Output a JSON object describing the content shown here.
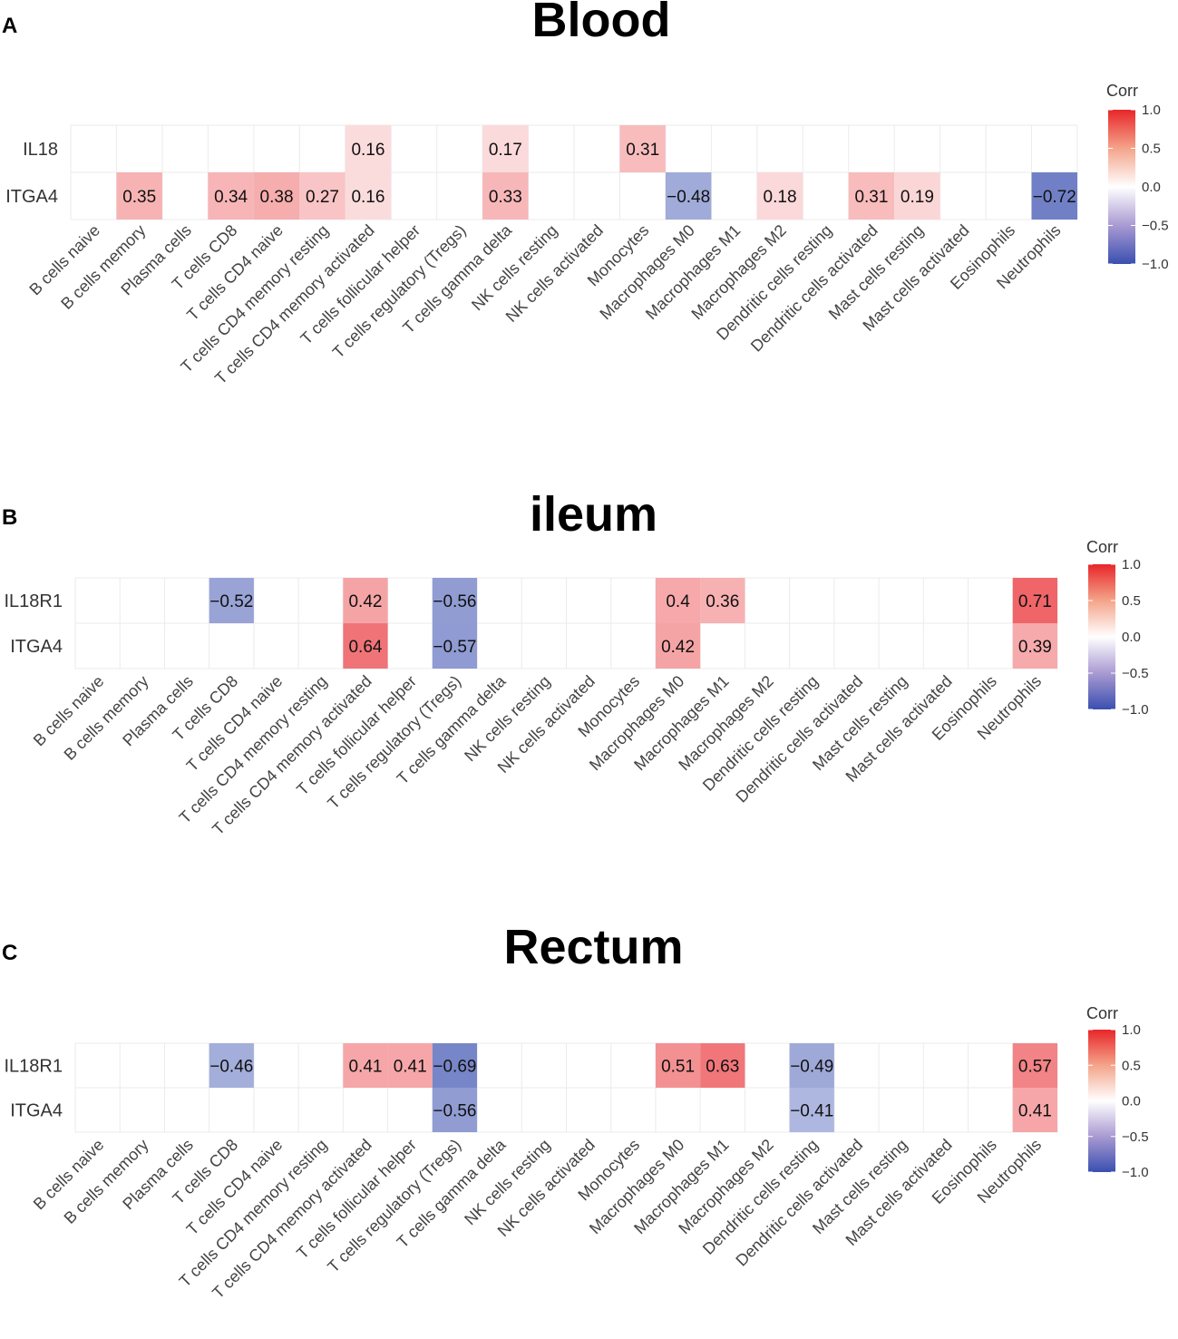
{
  "chart_data": [
    {
      "type": "heatmap",
      "panel_label": "A",
      "title": "Blood",
      "rows": [
        "IL18",
        "ITGA4"
      ],
      "columns": [
        "B cells naive",
        "B cells memory",
        "Plasma cells",
        "T cells CD8",
        "T cells CD4 naive",
        "T cells CD4 memory resting",
        "T cells CD4 memory activated",
        "T cells follicular helper",
        "T cells regulatory (Tregs)",
        "T cells gamma delta",
        "NK cells resting",
        "NK cells activated",
        "Monocytes",
        "Macrophages M0",
        "Macrophages M1",
        "Macrophages M2",
        "Dendritic cells resting",
        "Dendritic cells activated",
        "Mast cells resting",
        "Mast cells activated",
        "Eosinophils",
        "Neutrophils"
      ],
      "values": [
        [
          null,
          null,
          null,
          null,
          null,
          null,
          0.16,
          null,
          null,
          0.17,
          null,
          null,
          0.31,
          null,
          null,
          null,
          null,
          null,
          null,
          null,
          null,
          null
        ],
        [
          null,
          0.35,
          null,
          0.34,
          0.38,
          0.27,
          0.16,
          null,
          null,
          0.33,
          null,
          null,
          null,
          -0.48,
          null,
          0.18,
          null,
          0.31,
          0.19,
          null,
          null,
          -0.72
        ]
      ],
      "labels": [
        [
          null,
          null,
          null,
          null,
          null,
          null,
          "0.16",
          null,
          null,
          "0.17",
          null,
          null,
          "0.31",
          null,
          null,
          null,
          null,
          null,
          null,
          null,
          null,
          null
        ],
        [
          null,
          "0.35",
          null,
          "0.34",
          "0.38",
          "0.27",
          "0.16",
          null,
          null,
          "0.33",
          null,
          null,
          null,
          "−0.48",
          null,
          "0.18",
          null,
          "0.31",
          "0.19",
          null,
          null,
          "−0.72"
        ]
      ],
      "legend": {
        "title": "Corr",
        "ticks": [
          "1.0",
          "0.5",
          "0.0",
          "−0.5",
          "−1.0"
        ],
        "range": [
          -1,
          1
        ]
      }
    },
    {
      "type": "heatmap",
      "panel_label": "B",
      "title": "ileum",
      "rows": [
        "IL18R1",
        "ITGA4"
      ],
      "columns": [
        "B cells naive",
        "B cells memory",
        "Plasma cells",
        "T cells CD8",
        "T cells CD4 naive",
        "T cells CD4 memory resting",
        "T cells CD4 memory activated",
        "T cells follicular helper",
        "T cells regulatory (Tregs)",
        "T cells gamma delta",
        "NK cells resting",
        "NK cells activated",
        "Monocytes",
        "Macrophages M0",
        "Macrophages M1",
        "Macrophages M2",
        "Dendritic cells resting",
        "Dendritic cells activated",
        "Mast cells resting",
        "Mast cells activated",
        "Eosinophils",
        "Neutrophils"
      ],
      "values": [
        [
          null,
          null,
          null,
          -0.52,
          null,
          null,
          0.42,
          null,
          -0.56,
          null,
          null,
          null,
          null,
          0.4,
          0.36,
          null,
          null,
          null,
          null,
          null,
          null,
          0.71
        ],
        [
          null,
          null,
          null,
          null,
          null,
          null,
          0.64,
          null,
          -0.57,
          null,
          null,
          null,
          null,
          0.42,
          null,
          null,
          null,
          null,
          null,
          null,
          null,
          0.39
        ]
      ],
      "labels": [
        [
          null,
          null,
          null,
          "−0.52",
          null,
          null,
          "0.42",
          null,
          "−0.56",
          null,
          null,
          null,
          null,
          "0.4",
          "0.36",
          null,
          null,
          null,
          null,
          null,
          null,
          "0.71"
        ],
        [
          null,
          null,
          null,
          null,
          null,
          null,
          "0.64",
          null,
          "−0.57",
          null,
          null,
          null,
          null,
          "0.42",
          null,
          null,
          null,
          null,
          null,
          null,
          null,
          "0.39"
        ]
      ],
      "legend": {
        "title": "Corr",
        "ticks": [
          "1.0",
          "0.5",
          "0.0",
          "−0.5",
          "−1.0"
        ],
        "range": [
          -1,
          1
        ]
      }
    },
    {
      "type": "heatmap",
      "panel_label": "C",
      "title": "Rectum",
      "rows": [
        "IL18R1",
        "ITGA4"
      ],
      "columns": [
        "B cells naive",
        "B cells memory",
        "Plasma cells",
        "T cells CD8",
        "T cells CD4 naive",
        "T cells CD4 memory resting",
        "T cells CD4 memory activated",
        "T cells follicular helper",
        "T cells regulatory (Tregs)",
        "T cells gamma delta",
        "NK cells resting",
        "NK cells activated",
        "Monocytes",
        "Macrophages M0",
        "Macrophages M1",
        "Macrophages M2",
        "Dendritic cells resting",
        "Dendritic cells activated",
        "Mast cells resting",
        "Mast cells activated",
        "Eosinophils",
        "Neutrophils"
      ],
      "values": [
        [
          null,
          null,
          null,
          -0.46,
          null,
          null,
          0.41,
          0.41,
          -0.69,
          null,
          null,
          null,
          null,
          0.51,
          0.63,
          null,
          -0.49,
          null,
          null,
          null,
          null,
          0.57
        ],
        [
          null,
          null,
          null,
          null,
          null,
          null,
          null,
          null,
          -0.56,
          null,
          null,
          null,
          null,
          null,
          null,
          null,
          -0.41,
          null,
          null,
          null,
          null,
          0.41
        ]
      ],
      "labels": [
        [
          null,
          null,
          null,
          "−0.46",
          null,
          null,
          "0.41",
          "0.41",
          "−0.69",
          null,
          null,
          null,
          null,
          "0.51",
          "0.63",
          null,
          "−0.49",
          null,
          null,
          null,
          null,
          "0.57"
        ],
        [
          null,
          null,
          null,
          null,
          null,
          null,
          null,
          null,
          "−0.56",
          null,
          null,
          null,
          null,
          null,
          null,
          null,
          "−0.41",
          null,
          null,
          null,
          null,
          "0.41"
        ]
      ],
      "legend": {
        "title": "Corr",
        "ticks": [
          "1.0",
          "0.5",
          "0.0",
          "−0.5",
          "−1.0"
        ],
        "range": [
          -1,
          1
        ]
      }
    }
  ]
}
